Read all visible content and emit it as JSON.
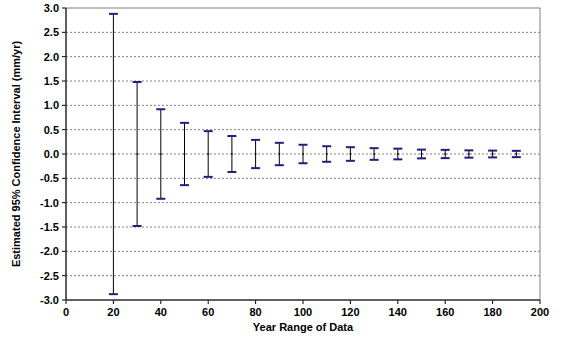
{
  "chart_data": {
    "type": "errorbar",
    "x_label": "Year Range of Data",
    "y_label": "Estimated 95% Confidence Interval (mm/yr)",
    "x": [
      20,
      30,
      40,
      50,
      60,
      70,
      80,
      90,
      100,
      110,
      120,
      130,
      140,
      150,
      160,
      170,
      180,
      190
    ],
    "values": [
      0,
      0,
      0,
      0,
      0,
      0,
      0,
      0,
      0,
      0,
      0,
      0,
      0,
      0,
      0,
      0,
      0,
      0
    ],
    "errors": [
      2.88,
      1.48,
      0.92,
      0.64,
      0.47,
      0.37,
      0.29,
      0.23,
      0.19,
      0.16,
      0.14,
      0.12,
      0.11,
      0.09,
      0.085,
      0.075,
      0.07,
      0.065
    ],
    "color": "#1f1f80",
    "xlim": [
      0,
      200
    ],
    "xticks": [
      0,
      20,
      40,
      60,
      80,
      100,
      120,
      140,
      160,
      180,
      200
    ],
    "ylim": [
      -3,
      3
    ],
    "yticks": [
      {
        "value": -3,
        "label": "-3.0"
      },
      -2.5,
      {
        "value": -2,
        "label": "-2.0"
      },
      -1.5,
      {
        "value": -1,
        "label": "-1.0"
      },
      -0.5,
      {
        "value": 0,
        "label": "0.0"
      },
      0.5,
      {
        "value": 1,
        "label": "1.0"
      },
      1.5,
      {
        "value": 2,
        "label": "2.0"
      },
      2.5,
      {
        "value": 3,
        "label": "3.0"
      }
    ],
    "grid": true
  }
}
